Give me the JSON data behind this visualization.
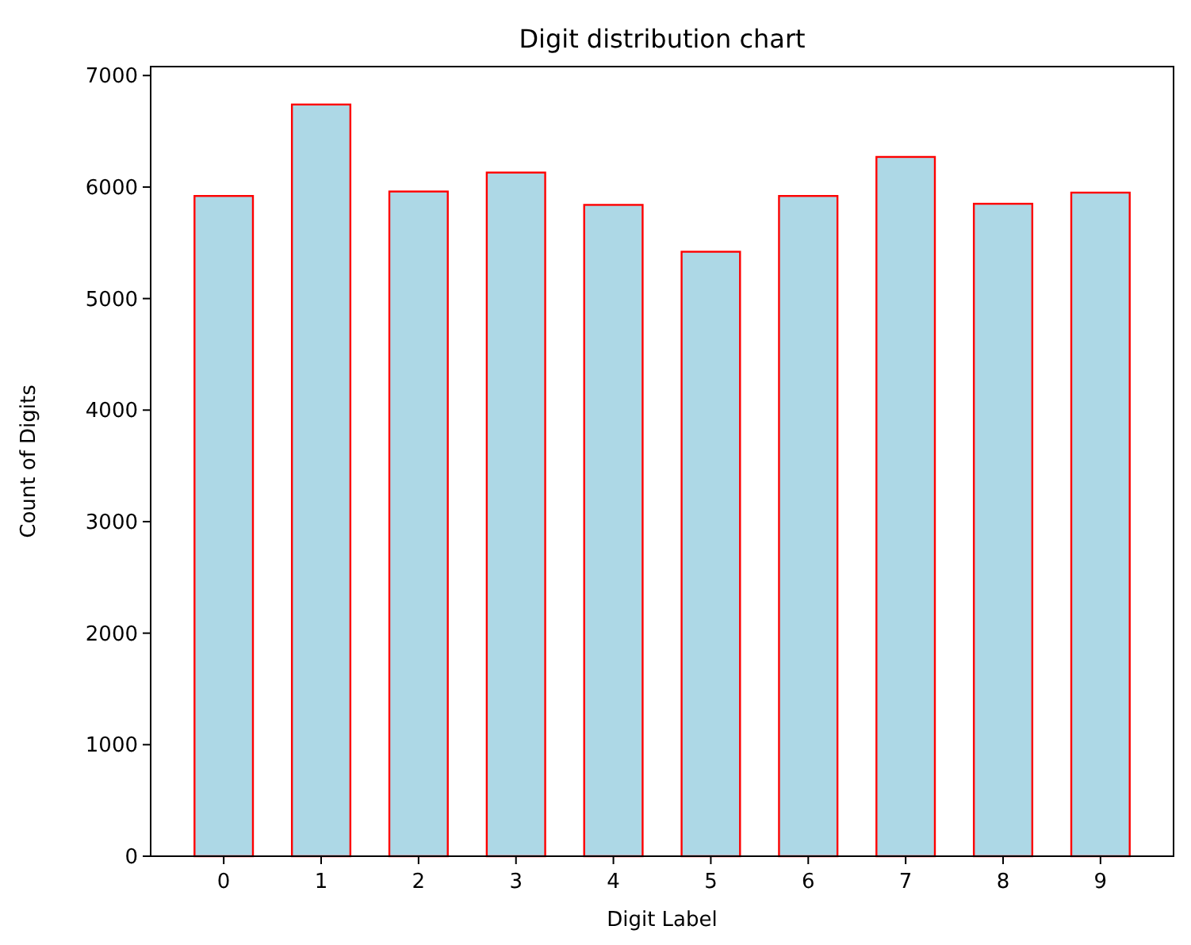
{
  "chart_data": {
    "type": "bar",
    "title": "Digit distribution chart",
    "xlabel": "Digit Label",
    "ylabel": "Count of Digits",
    "categories": [
      "0",
      "1",
      "2",
      "3",
      "4",
      "5",
      "6",
      "7",
      "8",
      "9"
    ],
    "values": [
      5920,
      6740,
      5960,
      6130,
      5840,
      5420,
      5920,
      6270,
      5850,
      5950
    ],
    "color": "#add8e6",
    "ylim": [
      0,
      7080
    ],
    "yticks": [
      0,
      1000,
      2000,
      3000,
      4000,
      5000,
      6000,
      7000
    ],
    "grid": false
  }
}
